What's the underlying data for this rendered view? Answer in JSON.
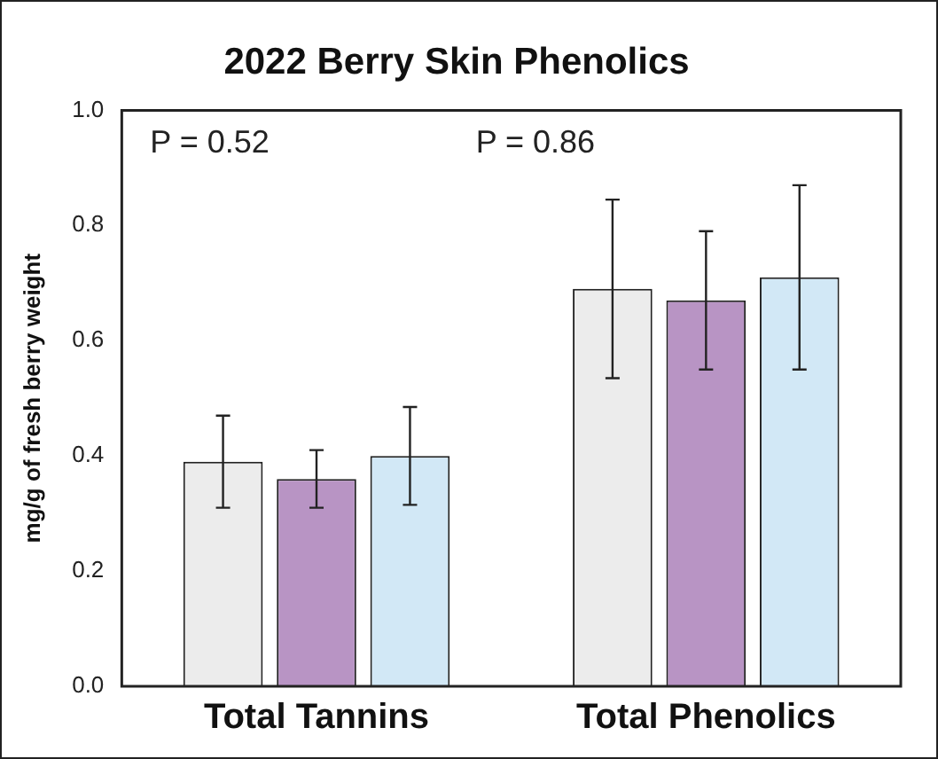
{
  "chart_data": {
    "type": "bar",
    "title": "2022 Berry Skin Phenolics",
    "ylabel": "mg/g of fresh berry weight",
    "categories": [
      "Total Tannins",
      "Total Phenolics"
    ],
    "series": [
      {
        "color": "#ececec",
        "values": [
          0.39,
          0.69
        ],
        "errors": [
          0.08,
          0.155
        ]
      },
      {
        "color": "#b894c4",
        "values": [
          0.36,
          0.67
        ],
        "errors": [
          0.05,
          0.12
        ]
      },
      {
        "color": "#d2e8f6",
        "values": [
          0.4,
          0.71
        ],
        "errors": [
          0.085,
          0.16
        ]
      }
    ],
    "annotations": [
      "P = 0.52",
      "P = 0.86"
    ],
    "ylim": [
      0,
      1.0
    ],
    "yticks": [
      {
        "value": 0,
        "label": "0.0"
      },
      0.2,
      0.4,
      0.6,
      0.8,
      {
        "value": 1,
        "label": "1.0"
      }
    ],
    "grid": false,
    "legend": false
  }
}
